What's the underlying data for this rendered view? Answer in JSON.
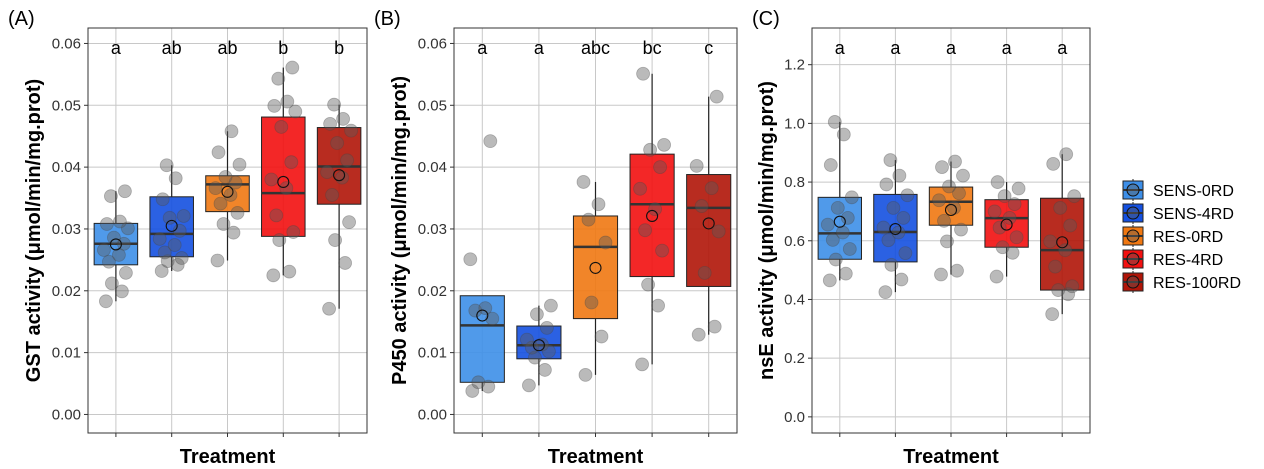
{
  "legend": {
    "groups": [
      {
        "name": "SENS-0RD",
        "color": "#3d8fe8"
      },
      {
        "name": "SENS-4RD",
        "color": "#1450e0"
      },
      {
        "name": "RES-0RD",
        "color": "#f07812"
      },
      {
        "name": "RES-4RD",
        "color": "#f21010"
      },
      {
        "name": "RES-100RD",
        "color": "#b01508"
      }
    ]
  },
  "chart_data": [
    {
      "type": "box",
      "panel_label": "(A)",
      "xlabel": "Treatment",
      "ylabel": "GST activity (μmol/min/mg.prot)",
      "ylim": [
        -0.003,
        0.0625
      ],
      "yticks": [
        0.0,
        0.01,
        0.02,
        0.03,
        0.04,
        0.05,
        0.06
      ],
      "ytick_labels": [
        "0.00",
        "0.01",
        "0.02",
        "0.03",
        "0.04",
        "0.05",
        "0.06"
      ],
      "grid": true,
      "significance": [
        "a",
        "ab",
        "ab",
        "b",
        "b"
      ],
      "boxes": [
        {
          "group": "SENS-0RD",
          "q1": 0.0242,
          "median": 0.0276,
          "q3": 0.0309,
          "whisker_low": 0.0183,
          "whisker_high": 0.0361,
          "mean": 0.0275,
          "points": [
            0.0183,
            0.0199,
            0.0212,
            0.0229,
            0.0247,
            0.0258,
            0.0266,
            0.0276,
            0.0286,
            0.0301,
            0.0308,
            0.0312,
            0.0353,
            0.0361
          ]
        },
        {
          "group": "SENS-4RD",
          "q1": 0.0255,
          "median": 0.0292,
          "q3": 0.0352,
          "whisker_low": 0.0232,
          "whisker_high": 0.0403,
          "mean": 0.0305,
          "points": [
            0.0232,
            0.0242,
            0.0248,
            0.0253,
            0.0262,
            0.0274,
            0.0284,
            0.0297,
            0.0318,
            0.0321,
            0.0348,
            0.0382,
            0.0403
          ]
        },
        {
          "group": "RES-0RD",
          "q1": 0.0328,
          "median": 0.0372,
          "q3": 0.0386,
          "whisker_low": 0.0249,
          "whisker_high": 0.0458,
          "mean": 0.036,
          "points": [
            0.0249,
            0.0294,
            0.0308,
            0.0326,
            0.0341,
            0.0355,
            0.0366,
            0.0375,
            0.0384,
            0.0404,
            0.0424,
            0.0458
          ]
        },
        {
          "group": "RES-4RD",
          "q1": 0.0288,
          "median": 0.0358,
          "q3": 0.0481,
          "whisker_low": 0.0225,
          "whisker_high": 0.0561,
          "mean": 0.0376,
          "points": [
            0.0225,
            0.0231,
            0.0282,
            0.0295,
            0.0322,
            0.0366,
            0.038,
            0.0408,
            0.0465,
            0.049,
            0.0499,
            0.0506,
            0.0543,
            0.0561
          ]
        },
        {
          "group": "RES-100RD",
          "q1": 0.034,
          "median": 0.0401,
          "q3": 0.0464,
          "whisker_low": 0.0171,
          "whisker_high": 0.0501,
          "mean": 0.0387,
          "points": [
            0.0171,
            0.0245,
            0.0282,
            0.0311,
            0.0355,
            0.0383,
            0.0392,
            0.0411,
            0.0439,
            0.0459,
            0.047,
            0.0478,
            0.0501
          ]
        }
      ]
    },
    {
      "type": "box",
      "panel_label": "(B)",
      "xlabel": "Treatment",
      "ylabel": "P450 activity (μmol/min/mg.prot)",
      "ylim": [
        -0.003,
        0.0625
      ],
      "yticks": [
        0.0,
        0.01,
        0.02,
        0.03,
        0.04,
        0.05,
        0.06
      ],
      "ytick_labels": [
        "0.00",
        "0.01",
        "0.02",
        "0.03",
        "0.04",
        "0.05",
        "0.06"
      ],
      "grid": true,
      "significance": [
        "a",
        "a",
        "abc",
        "bc",
        "c"
      ],
      "boxes": [
        {
          "group": "SENS-0RD",
          "q1": 0.0052,
          "median": 0.0144,
          "q3": 0.0192,
          "whisker_low": 0.0038,
          "whisker_high": 0.0192,
          "mean": 0.016,
          "points": [
            0.0038,
            0.0045,
            0.0052,
            0.0155,
            0.0168,
            0.0172,
            0.0251,
            0.0442
          ]
        },
        {
          "group": "SENS-4RD",
          "q1": 0.009,
          "median": 0.0112,
          "q3": 0.0143,
          "whisker_low": 0.0047,
          "whisker_high": 0.0176,
          "mean": 0.0112,
          "points": [
            0.0047,
            0.0072,
            0.0092,
            0.0102,
            0.0108,
            0.0113,
            0.0121,
            0.014,
            0.0162,
            0.0176
          ]
        },
        {
          "group": "RES-0RD",
          "q1": 0.0155,
          "median": 0.0271,
          "q3": 0.0321,
          "whisker_low": 0.0064,
          "whisker_high": 0.0376,
          "mean": 0.0237,
          "points": [
            0.0064,
            0.0126,
            0.0181,
            0.0278,
            0.0315,
            0.034,
            0.0376
          ]
        },
        {
          "group": "RES-4RD",
          "q1": 0.0223,
          "median": 0.034,
          "q3": 0.0421,
          "whisker_low": 0.0081,
          "whisker_high": 0.0551,
          "mean": 0.0321,
          "points": [
            0.0081,
            0.0176,
            0.021,
            0.0265,
            0.0298,
            0.0332,
            0.0365,
            0.04,
            0.0428,
            0.0436,
            0.0551
          ]
        },
        {
          "group": "RES-100RD",
          "q1": 0.0207,
          "median": 0.0334,
          "q3": 0.0388,
          "whisker_low": 0.0129,
          "whisker_high": 0.0514,
          "mean": 0.0309,
          "points": [
            0.0129,
            0.0142,
            0.0229,
            0.0296,
            0.0337,
            0.0366,
            0.0402,
            0.0514
          ]
        }
      ]
    },
    {
      "type": "box",
      "panel_label": "(C)",
      "xlabel": "Treatment",
      "ylabel": "nsE activity (μmol/min/mg.prot)",
      "ylim": [
        -0.055,
        1.325
      ],
      "yticks": [
        0.0,
        0.2,
        0.4,
        0.6,
        0.8,
        1.0,
        1.2
      ],
      "ytick_labels": [
        "0.0",
        "0.2",
        "0.4",
        "0.6",
        "0.8",
        "1.0",
        "1.2"
      ],
      "grid": true,
      "significance": [
        "a",
        "a",
        "a",
        "a",
        "a"
      ],
      "boxes": [
        {
          "group": "SENS-0RD",
          "q1": 0.537,
          "median": 0.625,
          "q3": 0.748,
          "whisker_low": 0.465,
          "whisker_high": 1.005,
          "mean": 0.665,
          "points": [
            0.465,
            0.488,
            0.536,
            0.572,
            0.603,
            0.628,
            0.655,
            0.678,
            0.712,
            0.748,
            0.858,
            0.962,
            1.005
          ]
        },
        {
          "group": "SENS-4RD",
          "q1": 0.528,
          "median": 0.63,
          "q3": 0.758,
          "whisker_low": 0.425,
          "whisker_high": 0.875,
          "mean": 0.64,
          "points": [
            0.425,
            0.468,
            0.518,
            0.558,
            0.602,
            0.628,
            0.645,
            0.678,
            0.712,
            0.755,
            0.792,
            0.822,
            0.875
          ]
        },
        {
          "group": "RES-0RD",
          "q1": 0.653,
          "median": 0.733,
          "q3": 0.783,
          "whisker_low": 0.485,
          "whisker_high": 0.87,
          "mean": 0.705,
          "points": [
            0.485,
            0.498,
            0.598,
            0.638,
            0.668,
            0.712,
            0.738,
            0.762,
            0.785,
            0.822,
            0.851,
            0.87
          ]
        },
        {
          "group": "RES-4RD",
          "q1": 0.578,
          "median": 0.677,
          "q3": 0.74,
          "whisker_low": 0.478,
          "whisker_high": 0.8,
          "mean": 0.655,
          "points": [
            0.478,
            0.559,
            0.578,
            0.612,
            0.645,
            0.678,
            0.7,
            0.725,
            0.752,
            0.778,
            0.8
          ]
        },
        {
          "group": "RES-100RD",
          "q1": 0.432,
          "median": 0.568,
          "q3": 0.745,
          "whisker_low": 0.35,
          "whisker_high": 0.895,
          "mean": 0.595,
          "points": [
            0.35,
            0.418,
            0.432,
            0.445,
            0.512,
            0.568,
            0.598,
            0.652,
            0.712,
            0.752,
            0.862,
            0.895
          ]
        }
      ]
    }
  ]
}
